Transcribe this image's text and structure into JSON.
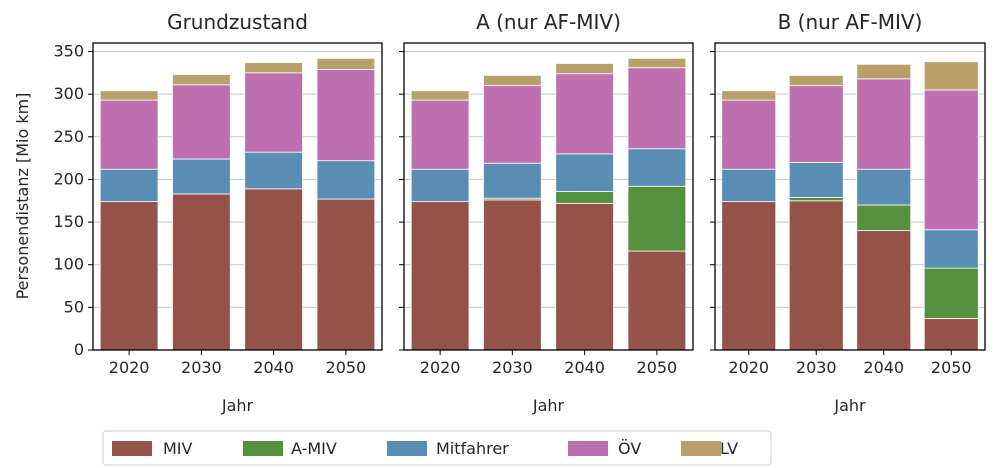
{
  "chart_data": {
    "type": "bar",
    "stacked": true,
    "ylabel": "Personendistanz [Mio km]",
    "xlabel": "Jahr",
    "ylim": [
      0,
      360
    ],
    "yticks": [
      0,
      50,
      100,
      150,
      200,
      250,
      300,
      350
    ],
    "grid": "horizontal",
    "legend_placement": "bottom",
    "categories": [
      "2020",
      "2030",
      "2040",
      "2050"
    ],
    "series_colors": {
      "MIV": "#955249",
      "A-MIV": "#55903f",
      "Mitfahrer": "#5a8db4",
      "ÖV": "#bd6fb0",
      "LV": "#b9a06b"
    },
    "legend": [
      "MIV",
      "A-MIV",
      "Mitfahrer",
      "ÖV",
      "LV"
    ],
    "panels": [
      {
        "title": "Grundzustand",
        "series": [
          {
            "name": "MIV",
            "values": [
              174,
              183,
              189,
              177
            ]
          },
          {
            "name": "A-MIV",
            "values": [
              0,
              0,
              0,
              0
            ]
          },
          {
            "name": "Mitfahrer",
            "values": [
              38,
              41,
              43,
              45
            ]
          },
          {
            "name": "ÖV",
            "values": [
              81,
              87,
              93,
              107
            ]
          },
          {
            "name": "LV",
            "values": [
              11,
              12,
              12,
              13
            ]
          }
        ]
      },
      {
        "title": "A (nur AF-MIV)",
        "series": [
          {
            "name": "MIV",
            "values": [
              174,
              176,
              172,
              116
            ]
          },
          {
            "name": "A-MIV",
            "values": [
              0,
              2,
              14,
              76
            ]
          },
          {
            "name": "Mitfahrer",
            "values": [
              38,
              41,
              44,
              44
            ]
          },
          {
            "name": "ÖV",
            "values": [
              81,
              91,
              94,
              95
            ]
          },
          {
            "name": "LV",
            "values": [
              11,
              12,
              12,
              11
            ]
          }
        ]
      },
      {
        "title": "B (nur AF-MIV)",
        "series": [
          {
            "name": "MIV",
            "values": [
              174,
              175,
              140,
              37
            ]
          },
          {
            "name": "A-MIV",
            "values": [
              0,
              4,
              30,
              59
            ]
          },
          {
            "name": "Mitfahrer",
            "values": [
              38,
              41,
              42,
              45
            ]
          },
          {
            "name": "ÖV",
            "values": [
              81,
              90,
              106,
              164
            ]
          },
          {
            "name": "LV",
            "values": [
              11,
              12,
              17,
              33
            ]
          }
        ]
      }
    ]
  }
}
